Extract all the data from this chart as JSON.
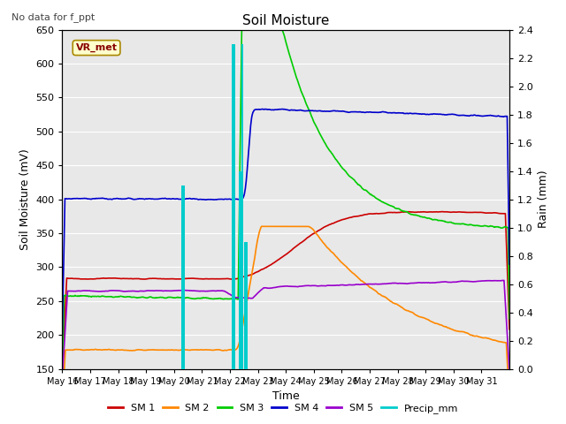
{
  "title": "Soil Moisture",
  "xlabel": "Time",
  "ylabel_left": "Soil Moisture (mV)",
  "ylabel_right": "Rain (mm)",
  "note": "No data for f_ppt",
  "station_label": "VR_met",
  "ylim_left": [
    150,
    650
  ],
  "ylim_right": [
    0.0,
    2.4
  ],
  "yticks_left": [
    150,
    200,
    250,
    300,
    350,
    400,
    450,
    500,
    550,
    600,
    650
  ],
  "yticks_right": [
    0.0,
    0.2,
    0.4,
    0.6,
    0.8,
    1.0,
    1.2,
    1.4,
    1.6,
    1.8,
    2.0,
    2.2,
    2.4
  ],
  "n_days": 16,
  "xtick_labels": [
    "May 16",
    "May 17",
    "May 18",
    "May 19",
    "May 20",
    "May 21",
    "May 22",
    "May 23",
    "May 24",
    "May 25",
    "May 26",
    "May 27",
    "May 28",
    "May 29",
    "May 30",
    "May 31"
  ],
  "colors": {
    "SM1": "#cc0000",
    "SM2": "#ff8800",
    "SM3": "#00cc00",
    "SM4": "#0000cc",
    "SM5": "#9900cc",
    "Precip": "#00cccc",
    "bg": "#e8e8e8",
    "grid": "#ffffff"
  },
  "legend_labels": [
    "SM 1",
    "SM 2",
    "SM 3",
    "SM 4",
    "SM 5",
    "Precip_mm"
  ],
  "precip_x": [
    4.3,
    4.35,
    6.1,
    6.15,
    6.35,
    6.4,
    6.45,
    6.55,
    6.6
  ],
  "precip_h": [
    1.3,
    1.3,
    2.3,
    2.3,
    1.4,
    1.4,
    2.3,
    0.9,
    0.9
  ],
  "event_day": 6.5
}
